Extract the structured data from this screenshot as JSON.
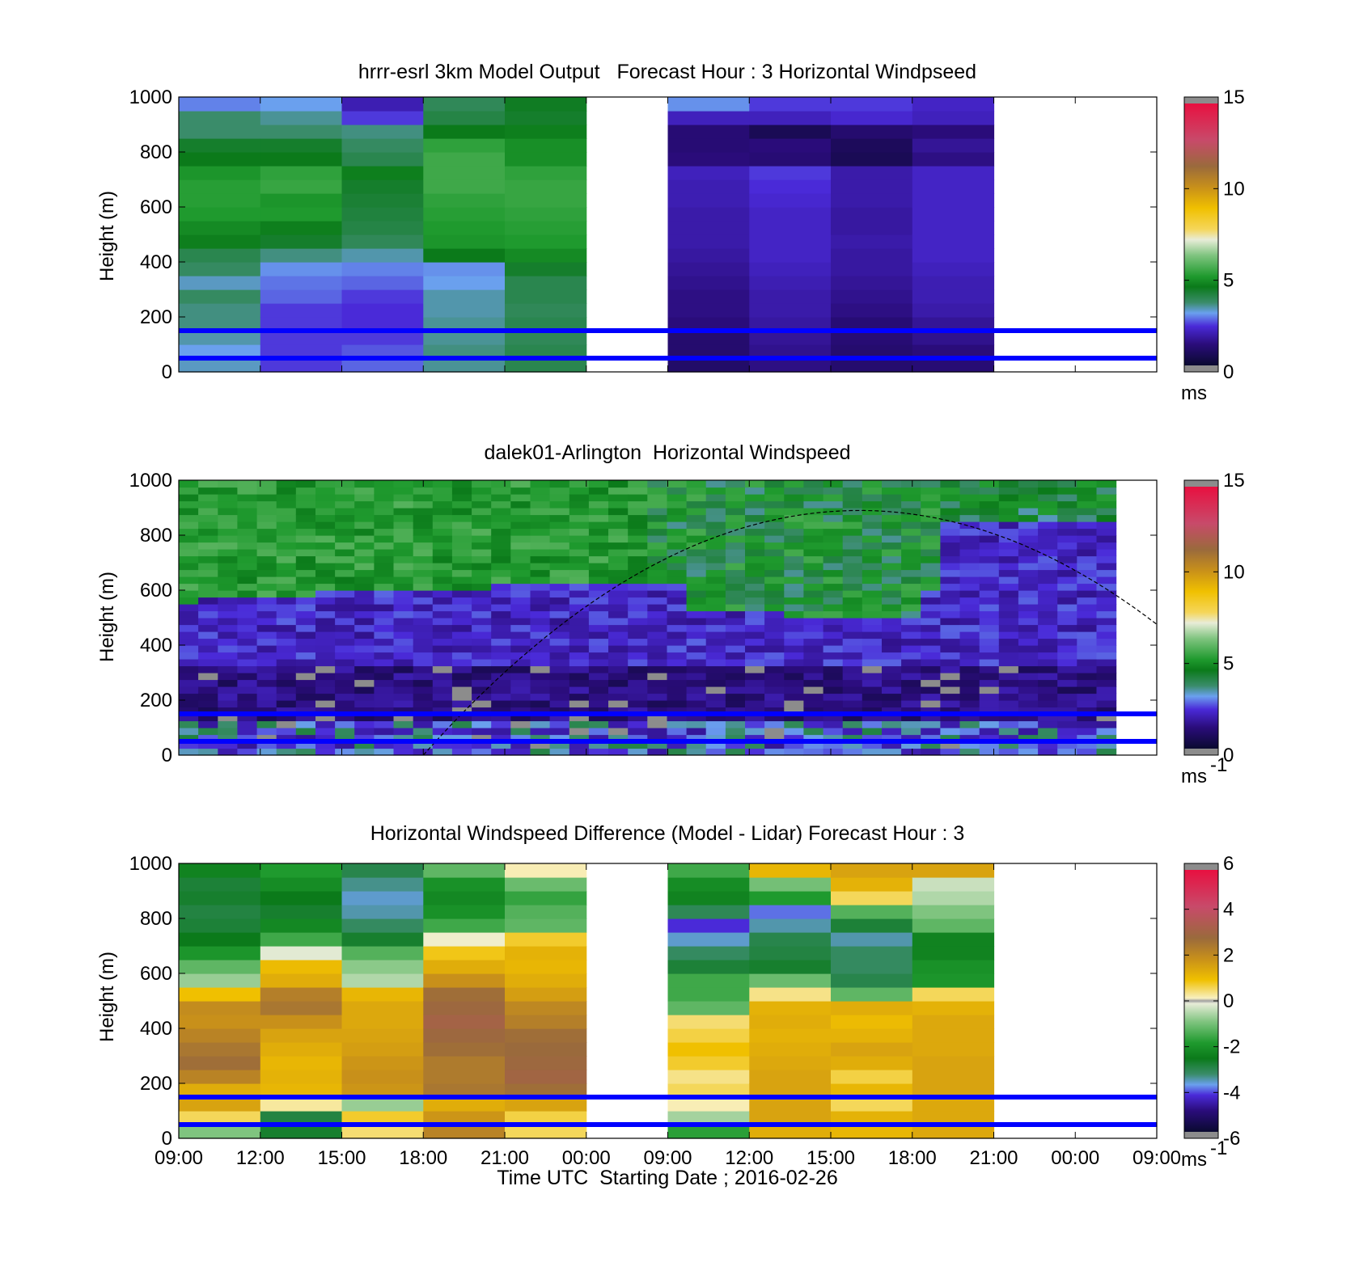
{
  "chart_data": [
    {
      "type": "heatmap",
      "title": "hrrr-esrl 3km Model Output   Forecast Hour : 3 Horizontal Windpseed",
      "ylabel": "Height (m)",
      "ylim": [
        0,
        1000
      ],
      "yticks": [
        "0",
        "200",
        "400",
        "600",
        "800",
        "1000"
      ],
      "xticks": [
        "09:00",
        "12:00",
        "15:00",
        "18:00",
        "21:00",
        "00:00",
        "09:00",
        "12:00",
        "15:00",
        "18:00",
        "21:00",
        "00:00",
        "09:00"
      ],
      "show_xtick_labels": false,
      "colorbar": {
        "min": 0,
        "max": 15,
        "ticks": [
          "0",
          "5",
          "10",
          "15"
        ],
        "unit": "ms",
        "unit_exp": "",
        "palette": "speed"
      },
      "reference_lines_m": [
        150,
        50
      ],
      "data_columns": [
        0,
        1,
        2,
        3,
        4,
        6,
        7,
        8,
        9
      ],
      "height_bins_m": [
        0,
        50,
        100,
        150,
        200,
        250,
        300,
        350,
        400,
        450,
        500,
        550,
        600,
        650,
        700,
        750,
        800,
        850,
        900,
        950,
        1000
      ],
      "values": [
        [
          3.2,
          3.0,
          3.3,
          3.5,
          3.5,
          3.7,
          3.2,
          3.7,
          3.9,
          4.6,
          4.8,
          5.1,
          5.2,
          5.2,
          5.0,
          4.5,
          4.3,
          3.6,
          3.6,
          2.8
        ],
        [
          2.3,
          2.3,
          2.3,
          2.3,
          2.3,
          2.6,
          2.7,
          2.9,
          3.5,
          4.3,
          4.6,
          5.1,
          5.0,
          5.4,
          5.3,
          4.5,
          4.3,
          3.6,
          3.4,
          3.0
        ],
        [
          2.6,
          2.5,
          2.3,
          2.2,
          2.2,
          2.3,
          2.6,
          2.8,
          3.3,
          3.8,
          4.0,
          4.1,
          4.2,
          4.3,
          4.6,
          3.9,
          3.7,
          3.5,
          2.3,
          1.8
        ],
        [
          3.4,
          3.5,
          3.4,
          3.4,
          3.3,
          3.3,
          3.0,
          2.9,
          4.5,
          5.0,
          5.1,
          5.2,
          5.3,
          5.5,
          5.5,
          5.5,
          5.3,
          4.5,
          4.0,
          3.8
        ],
        [
          3.9,
          3.9,
          3.8,
          3.9,
          3.8,
          3.9,
          3.9,
          4.3,
          4.8,
          5.1,
          5.2,
          5.3,
          5.4,
          5.4,
          5.3,
          4.9,
          4.9,
          4.6,
          4.3,
          4.4
        ],
        [
          0.9,
          1.0,
          1.0,
          1.2,
          1.3,
          1.3,
          1.4,
          1.5,
          1.6,
          1.7,
          1.7,
          1.7,
          1.8,
          1.8,
          1.9,
          1.2,
          1.1,
          1.1,
          1.9,
          2.9
        ],
        [
          1.3,
          1.4,
          1.5,
          1.6,
          1.7,
          1.7,
          1.8,
          1.9,
          2.0,
          2.0,
          2.0,
          2.0,
          2.1,
          2.2,
          2.3,
          1.1,
          1.2,
          0.6,
          1.9,
          2.3
        ],
        [
          1.0,
          1.0,
          1.1,
          1.1,
          1.3,
          1.4,
          1.5,
          1.6,
          1.6,
          1.7,
          1.6,
          1.6,
          1.7,
          1.7,
          1.7,
          0.6,
          0.7,
          1.0,
          2.1,
          2.3
        ],
        [
          1.1,
          1.2,
          1.4,
          1.5,
          1.7,
          1.8,
          1.8,
          1.9,
          2.0,
          2.0,
          2.0,
          2.0,
          2.0,
          2.0,
          2.0,
          1.3,
          1.5,
          1.2,
          1.9,
          2.0
        ]
      ]
    },
    {
      "type": "heatmap",
      "title": "dalek01-Arlington  Horizontal Windspeed",
      "ylabel": "Height (m)",
      "ylim": [
        0,
        1000
      ],
      "yticks": [
        "0",
        "200",
        "400",
        "600",
        "800",
        "1000"
      ],
      "xticks": [
        "09:00",
        "12:00",
        "15:00",
        "18:00",
        "21:00",
        "00:00",
        "09:00",
        "12:00",
        "15:00",
        "18:00",
        "21:00",
        "00:00",
        "09:00"
      ],
      "show_xtick_labels": false,
      "colorbar": {
        "min": 0,
        "max": 15,
        "ticks": [
          "0",
          "5",
          "10",
          "15"
        ],
        "unit": "ms",
        "unit_exp": "-1",
        "palette": "speed"
      },
      "reference_lines_m": [
        150,
        50
      ],
      "grid": {
        "columns": 48,
        "rows": 40,
        "x_end_index": 11.5
      },
      "curve_peak_m": 890
    },
    {
      "type": "heatmap",
      "title": "Horizontal Windspeed Difference (Model - Lidar) Forecast Hour : 3",
      "ylabel": "Height (m)",
      "xlabel": "Time UTC  Starting Date ; 2016-02-26",
      "ylim": [
        0,
        1000
      ],
      "yticks": [
        "0",
        "200",
        "400",
        "600",
        "800",
        "1000"
      ],
      "xticks": [
        "09:00",
        "12:00",
        "15:00",
        "18:00",
        "21:00",
        "00:00",
        "09:00",
        "12:00",
        "15:00",
        "18:00",
        "21:00",
        "00:00",
        "09:00"
      ],
      "show_xtick_labels": true,
      "colorbar": {
        "min": -6,
        "max": 6,
        "ticks": [
          "-6",
          "-4",
          "-2",
          "0",
          "2",
          "4",
          "6"
        ],
        "unit": "ms",
        "unit_exp": "-1",
        "palette": "diff"
      },
      "reference_lines_m": [
        150,
        50
      ],
      "data_columns": [
        0,
        1,
        2,
        3,
        4,
        6,
        7,
        8,
        9
      ],
      "height_bins_m": [
        0,
        50,
        100,
        150,
        200,
        250,
        300,
        350,
        400,
        450,
        500,
        550,
        600,
        650,
        700,
        750,
        800,
        850,
        900,
        950,
        1000
      ],
      "values": [
        [
          -1.0,
          0.6,
          1.6,
          1.4,
          2.3,
          2.8,
          2.6,
          2.3,
          2.0,
          2.1,
          1.0,
          -0.8,
          -1.3,
          -2.0,
          -2.6,
          -2.9,
          -3.0,
          -2.8,
          -2.9,
          -2.4
        ],
        [
          -2.8,
          -3.0,
          0.3,
          1.2,
          1.3,
          1.2,
          1.4,
          1.6,
          2.0,
          2.6,
          2.4,
          1.4,
          1.1,
          -0.2,
          -1.6,
          -2.3,
          -2.8,
          -2.6,
          -2.2,
          -1.9
        ],
        [
          0.5,
          0.8,
          -0.8,
          1.9,
          2.0,
          1.9,
          1.7,
          1.6,
          1.5,
          1.5,
          1.2,
          -0.6,
          -0.9,
          -1.4,
          -2.8,
          -3.3,
          -3.6,
          -3.7,
          -3.5,
          -3.1
        ],
        [
          2.3,
          1.9,
          1.4,
          2.6,
          2.5,
          2.5,
          2.8,
          3.0,
          3.2,
          3.0,
          2.8,
          2.0,
          1.4,
          0.9,
          0.0,
          -1.6,
          -2.1,
          -2.3,
          -2.1,
          -1.3
        ],
        [
          0.6,
          0.7,
          1.6,
          2.8,
          3.1,
          3.0,
          2.9,
          2.8,
          2.4,
          2.2,
          1.7,
          1.4,
          1.2,
          1.3,
          0.8,
          -1.3,
          -1.4,
          -1.7,
          -1.2,
          0.2
        ],
        [
          -1.8,
          -0.7,
          0.2,
          0.6,
          0.4,
          0.8,
          1.0,
          0.7,
          0.5,
          -1.3,
          -1.6,
          -1.6,
          -2.9,
          -3.3,
          -3.7,
          -4.3,
          -3.2,
          -2.4,
          -2.2,
          -1.6
        ],
        [
          1.4,
          1.6,
          1.6,
          1.6,
          1.6,
          1.5,
          1.4,
          1.3,
          1.4,
          1.3,
          0.4,
          -1.2,
          -2.8,
          -3.0,
          -3.1,
          -3.6,
          -4.0,
          -1.9,
          -1.1,
          1.2
        ],
        [
          1.2,
          1.3,
          0.6,
          1.2,
          0.7,
          1.4,
          1.6,
          1.3,
          1.1,
          1.4,
          -1.3,
          -3.1,
          -3.3,
          -3.3,
          -3.6,
          -2.9,
          -1.4,
          0.6,
          1.3,
          1.6
        ],
        [
          1.5,
          1.5,
          1.5,
          1.6,
          1.6,
          1.6,
          1.5,
          1.5,
          1.5,
          1.3,
          0.6,
          -2.0,
          -2.1,
          -2.4,
          -2.4,
          -1.3,
          -1.0,
          -0.6,
          -0.4,
          1.6
        ]
      ]
    }
  ]
}
